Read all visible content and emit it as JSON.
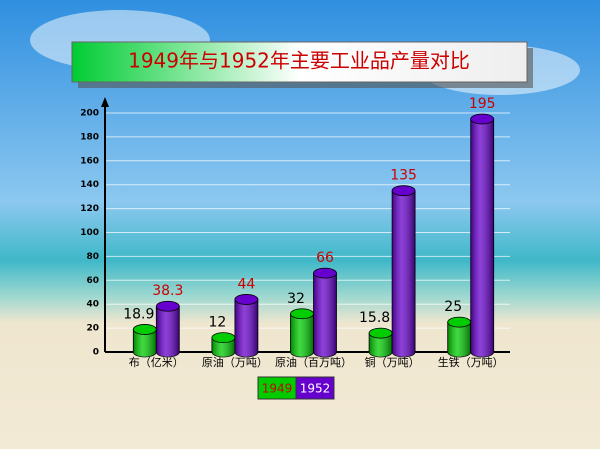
{
  "chart_data": {
    "type": "bar",
    "title": "1949年与1952年主要工业品产量对比",
    "categories": [
      "布（亿米）",
      "原油（万吨）",
      "原油（百万吨）",
      "铜（万吨）",
      "生铁（万吨）"
    ],
    "series": [
      {
        "name": "1949",
        "color": "#00cc00",
        "label_color": "#000000",
        "values": [
          18.9,
          12,
          32,
          15.8,
          25
        ]
      },
      {
        "name": "1952",
        "color": "#6600cc",
        "label_color": "#cc0000",
        "values": [
          38.3,
          44,
          66,
          135,
          195
        ]
      }
    ],
    "ylim": [
      0,
      200
    ],
    "yticks": [
      0,
      20,
      40,
      60,
      80,
      100,
      120,
      140,
      160,
      180,
      200
    ],
    "grid": true
  }
}
